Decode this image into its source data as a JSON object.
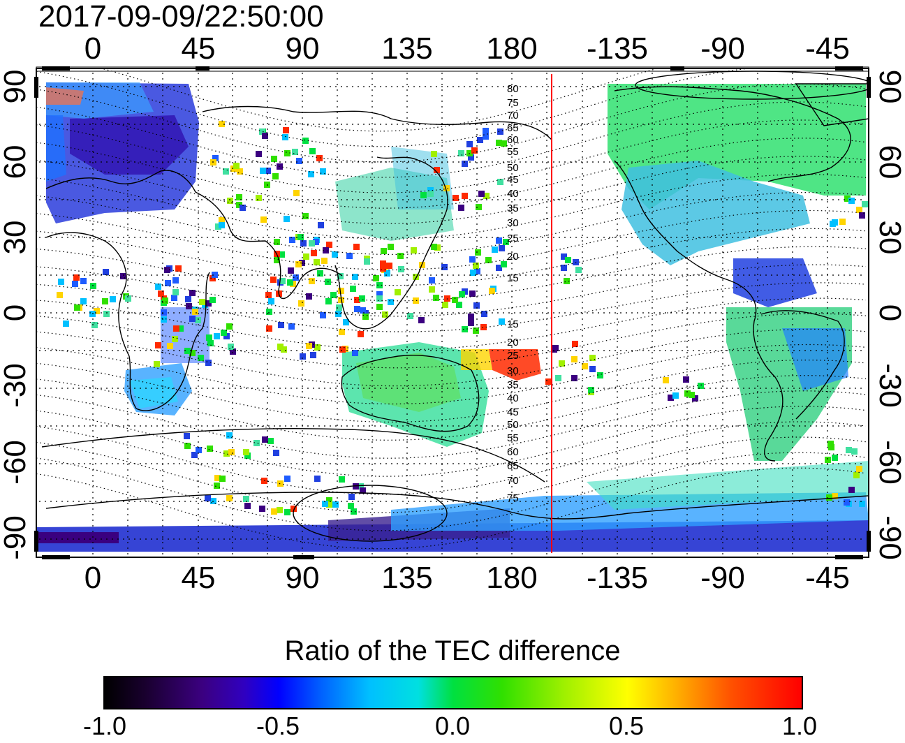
{
  "timestamp": "2017-09-09/22:50:00",
  "colorbar": {
    "title": "Ratio of the TEC difference",
    "ticks": [
      "-1.0",
      "-0.5",
      "0.0",
      "0.5",
      "1.0"
    ],
    "colors": [
      "#000000",
      "#3b0080",
      "#0000ff",
      "#00c0ff",
      "#00e040",
      "#a0f000",
      "#ffff00",
      "#ff5000",
      "#ff0000"
    ]
  },
  "axes": {
    "lon_ticks": [
      "0",
      "45",
      "90",
      "135",
      "180",
      "-135",
      "-90",
      "-45"
    ],
    "lat_ticks": [
      "90",
      "60",
      "30",
      "0",
      "-30",
      "-60",
      "-90"
    ]
  },
  "magnetic_latitude_labels": {
    "north": [
      "80",
      "75",
      "70",
      "65",
      "60",
      "55",
      "50",
      "45",
      "40",
      "35",
      "30",
      "25",
      "20",
      "15"
    ],
    "south": [
      "15",
      "20",
      "25",
      "30",
      "35",
      "40",
      "45",
      "50",
      "55",
      "60",
      "65",
      "70",
      "75"
    ]
  },
  "marker_line_color": "#ff0000"
}
